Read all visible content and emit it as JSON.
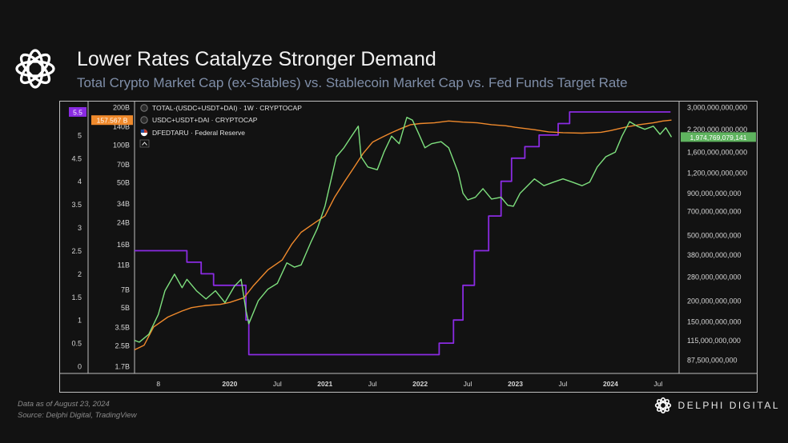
{
  "header": {
    "title": "Lower Rates Catalyze Stronger Demand",
    "subtitle": "Total Crypto Market Cap (ex-Stables) vs. Stablecoin Market Cap vs. Fed Funds Target Rate"
  },
  "footer": {
    "date_note": "Data as of August 23, 2024",
    "source": "Source: Delphi Digital, TradingView"
  },
  "brand": {
    "name": "DELPHI DIGITAL",
    "icon": "delphi-logo-icon"
  },
  "colors": {
    "background": "#121212",
    "total_mcap": "#7ee07e",
    "stablecoin": "#f08a2c",
    "fed_rate": "#8a2be2",
    "frame": "#bfbfbf"
  },
  "chart_data": {
    "type": "line",
    "title": "Lower Rates Catalyze Stronger Demand",
    "subtitle": "Total Crypto Market Cap (ex-Stables) vs. Stablecoin Market Cap vs. Fed Funds Target Rate",
    "legend": {
      "placement": "top-left",
      "entries": [
        "TOTAL-(USDC+USDT+DAI) · 1W · CRYPTOCAP",
        "USDC+USDT+DAI · CRYPTOCAP",
        "DFEDTARU · Federal Reserve"
      ]
    },
    "x_ticks": [
      "8",
      "2020",
      "Jul",
      "2021",
      "Jul",
      "2022",
      "Jul",
      "2023",
      "Jul",
      "2024",
      "Jul"
    ],
    "x_tick_dates": [
      2019.25,
      2020.0,
      2020.5,
      2021.0,
      2021.5,
      2022.0,
      2022.5,
      2023.0,
      2023.5,
      2024.0,
      2024.5
    ],
    "x_range": [
      "2019-01",
      "2024-09"
    ],
    "rate_axis": {
      "ticks": [
        "5.5",
        "5",
        "4.5",
        "4",
        "3.5",
        "3",
        "2.5",
        "2",
        "1.5",
        "1",
        "0.5",
        "0"
      ],
      "range": [
        0,
        5.5
      ],
      "highlighted": "5.5"
    },
    "stable_axis": {
      "ticks": [
        "200B",
        "140B",
        "100B",
        "70B",
        "50B",
        "34B",
        "24B",
        "16B",
        "11B",
        "7B",
        "5B",
        "3.5B",
        "2.5B",
        "1.7B"
      ],
      "scale": "log",
      "range": [
        1.7,
        200
      ],
      "last_value_label": "157.567 B"
    },
    "total_axis": {
      "ticks": [
        "3,000,000,000,000",
        "2,200,000,000,000",
        "1,600,000,000,000",
        "1,200,000,000,000",
        "900,000,000,000",
        "700,000,000,000",
        "500,000,000,000",
        "380,000,000,000",
        "280,000,000,000",
        "200,000,000,000",
        "150,000,000,000",
        "115,000,000,000",
        "87,500,000,000"
      ],
      "scale": "log",
      "range": [
        80000000000,
        3000000000000
      ],
      "last_value_label": "1,974,769,079,141"
    },
    "grid": false,
    "series": [
      {
        "name": "DFEDTARU · Federal Reserve",
        "axis": "rate",
        "color": "#8a2be2",
        "points": [
          [
            2019.0,
            2.5
          ],
          [
            2019.55,
            2.25
          ],
          [
            2019.7,
            2.0
          ],
          [
            2019.83,
            1.75
          ],
          [
            2020.17,
            1.0
          ],
          [
            2020.2,
            0.25
          ],
          [
            2022.2,
            0.5
          ],
          [
            2022.35,
            1.0
          ],
          [
            2022.45,
            1.75
          ],
          [
            2022.57,
            2.5
          ],
          [
            2022.72,
            3.25
          ],
          [
            2022.85,
            4.0
          ],
          [
            2022.96,
            4.5
          ],
          [
            2023.1,
            4.75
          ],
          [
            2023.25,
            5.0
          ],
          [
            2023.45,
            5.25
          ],
          [
            2023.57,
            5.5
          ],
          [
            2024.63,
            5.5
          ]
        ]
      },
      {
        "name": "USDC+USDT+DAI · CRYPTOCAP",
        "axis": "stable",
        "color": "#f08a2c",
        "points": [
          [
            2019.0,
            2.3
          ],
          [
            2019.1,
            2.5
          ],
          [
            2019.2,
            3.5
          ],
          [
            2019.35,
            4.2
          ],
          [
            2019.5,
            4.7
          ],
          [
            2019.6,
            5.0
          ],
          [
            2019.75,
            5.2
          ],
          [
            2019.9,
            5.3
          ],
          [
            2020.0,
            5.5
          ],
          [
            2020.15,
            6.0
          ],
          [
            2020.25,
            7.5
          ],
          [
            2020.4,
            10
          ],
          [
            2020.55,
            12
          ],
          [
            2020.65,
            16
          ],
          [
            2020.75,
            20
          ],
          [
            2020.9,
            24
          ],
          [
            2021.0,
            27
          ],
          [
            2021.1,
            38
          ],
          [
            2021.2,
            50
          ],
          [
            2021.3,
            65
          ],
          [
            2021.4,
            85
          ],
          [
            2021.5,
            105
          ],
          [
            2021.6,
            115
          ],
          [
            2021.7,
            125
          ],
          [
            2021.8,
            135
          ],
          [
            2021.9,
            145
          ],
          [
            2022.0,
            148
          ],
          [
            2022.15,
            150
          ],
          [
            2022.3,
            155
          ],
          [
            2022.45,
            152
          ],
          [
            2022.6,
            150
          ],
          [
            2022.75,
            145
          ],
          [
            2022.9,
            142
          ],
          [
            2023.0,
            138
          ],
          [
            2023.2,
            132
          ],
          [
            2023.35,
            127
          ],
          [
            2023.5,
            125
          ],
          [
            2023.7,
            124
          ],
          [
            2023.9,
            126
          ],
          [
            2024.0,
            130
          ],
          [
            2024.15,
            138
          ],
          [
            2024.3,
            145
          ],
          [
            2024.45,
            150
          ],
          [
            2024.55,
            155
          ],
          [
            2024.64,
            157.567
          ]
        ]
      },
      {
        "name": "TOTAL-(USDC+USDT+DAI) · 1W · CRYPTOCAP",
        "axis": "total",
        "color": "#7ee07e",
        "points": [
          [
            2019.0,
            115000000000.0
          ],
          [
            2019.05,
            112000000000.0
          ],
          [
            2019.15,
            125000000000.0
          ],
          [
            2019.25,
            165000000000.0
          ],
          [
            2019.32,
            230000000000.0
          ],
          [
            2019.42,
            290000000000.0
          ],
          [
            2019.5,
            240000000000.0
          ],
          [
            2019.55,
            270000000000.0
          ],
          [
            2019.65,
            230000000000.0
          ],
          [
            2019.75,
            205000000000.0
          ],
          [
            2019.85,
            230000000000.0
          ],
          [
            2019.95,
            195000000000.0
          ],
          [
            2020.05,
            245000000000.0
          ],
          [
            2020.12,
            270000000000.0
          ],
          [
            2020.17,
            175000000000.0
          ],
          [
            2020.2,
            145000000000.0
          ],
          [
            2020.3,
            200000000000.0
          ],
          [
            2020.4,
            235000000000.0
          ],
          [
            2020.5,
            255000000000.0
          ],
          [
            2020.6,
            340000000000.0
          ],
          [
            2020.68,
            320000000000.0
          ],
          [
            2020.75,
            330000000000.0
          ],
          [
            2020.85,
            450000000000.0
          ],
          [
            2020.92,
            550000000000.0
          ],
          [
            2021.0,
            750000000000.0
          ],
          [
            2021.05,
            1000000000000.0
          ],
          [
            2021.12,
            1500000000000.0
          ],
          [
            2021.2,
            1700000000000.0
          ],
          [
            2021.28,
            2000000000000.0
          ],
          [
            2021.35,
            2300000000000.0
          ],
          [
            2021.38,
            1500000000000.0
          ],
          [
            2021.45,
            1300000000000.0
          ],
          [
            2021.55,
            1250000000000.0
          ],
          [
            2021.62,
            1600000000000.0
          ],
          [
            2021.7,
            2000000000000.0
          ],
          [
            2021.78,
            1800000000000.0
          ],
          [
            2021.86,
            2600000000000.0
          ],
          [
            2021.92,
            2500000000000.0
          ],
          [
            2021.98,
            2100000000000.0
          ],
          [
            2022.05,
            1700000000000.0
          ],
          [
            2022.12,
            1800000000000.0
          ],
          [
            2022.22,
            1850000000000.0
          ],
          [
            2022.3,
            1700000000000.0
          ],
          [
            2022.4,
            1200000000000.0
          ],
          [
            2022.45,
            900000000000.0
          ],
          [
            2022.5,
            820000000000.0
          ],
          [
            2022.58,
            850000000000.0
          ],
          [
            2022.66,
            960000000000.0
          ],
          [
            2022.75,
            830000000000.0
          ],
          [
            2022.85,
            850000000000.0
          ],
          [
            2022.92,
            760000000000.0
          ],
          [
            2022.98,
            750000000000.0
          ],
          [
            2023.05,
            900000000000.0
          ],
          [
            2023.2,
            1100000000000.0
          ],
          [
            2023.3,
            1000000000000.0
          ],
          [
            2023.4,
            1050000000000.0
          ],
          [
            2023.5,
            1100000000000.0
          ],
          [
            2023.6,
            1050000000000.0
          ],
          [
            2023.7,
            1000000000000.0
          ],
          [
            2023.78,
            1050000000000.0
          ],
          [
            2023.86,
            1300000000000.0
          ],
          [
            2023.95,
            1500000000000.0
          ],
          [
            2024.05,
            1600000000000.0
          ],
          [
            2024.12,
            2000000000000.0
          ],
          [
            2024.2,
            2450000000000.0
          ],
          [
            2024.28,
            2300000000000.0
          ],
          [
            2024.36,
            2200000000000.0
          ],
          [
            2024.45,
            2300000000000.0
          ],
          [
            2024.52,
            2050000000000.0
          ],
          [
            2024.58,
            2250000000000.0
          ],
          [
            2024.64,
            1975000000000.0
          ]
        ]
      }
    ]
  }
}
